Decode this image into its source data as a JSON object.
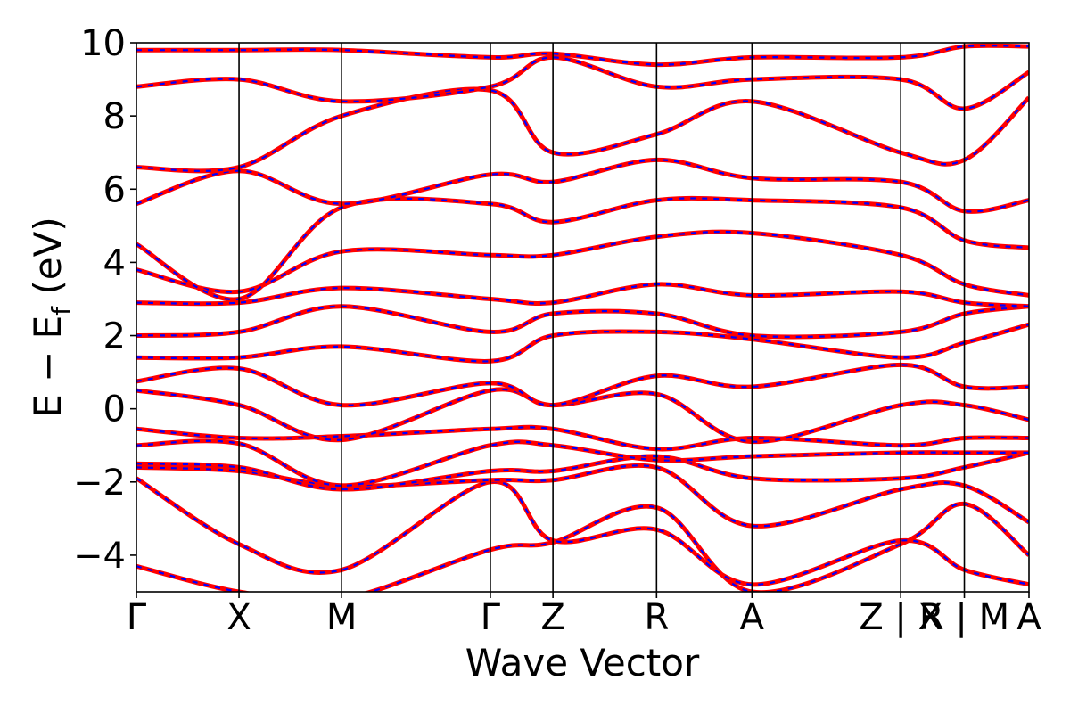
{
  "chart_data": {
    "type": "line",
    "xlabel": "Wave Vector",
    "ylabel": "E − E",
    "ylabel_sub": "f",
    "ylabel_unit": " (eV)",
    "ylim": [
      -5,
      10
    ],
    "yticks": [
      -4,
      -2,
      0,
      2,
      4,
      6,
      8,
      10
    ],
    "ytick_labels": [
      "−4",
      "−2",
      "0",
      "2",
      "4",
      "6",
      "8",
      "10"
    ],
    "kpath_breaks": [
      0,
      1,
      2,
      3.45,
      4.06,
      5.07,
      6.0,
      7.45,
      8.07,
      8.7
    ],
    "kpath_labels": [
      "Γ",
      "X",
      "M",
      "Γ",
      "Z",
      "R",
      "A",
      "Z | X",
      "R | M",
      "A"
    ],
    "grid": false,
    "legend": "none",
    "series": [
      {
        "line_color": "#ff0000",
        "dash_color": "#0000ff",
        "x": [
          0,
          1,
          2,
          3.45,
          4.06,
          5.07,
          6.0,
          7.45,
          8.07,
          8.7
        ],
        "values": [
          -4.3,
          -5.0,
          -5.2,
          -3.85,
          -3.65,
          -2.7,
          -5.0,
          -3.7,
          -2.6,
          -4.0
        ]
      },
      {
        "line_color": "#ff0000",
        "dash_color": "#0000ff",
        "x": [
          0,
          1,
          2,
          3.45,
          4.06,
          5.07,
          6.0,
          7.45,
          8.07,
          8.7
        ],
        "values": [
          -1.9,
          -3.7,
          -4.4,
          -2.0,
          -3.6,
          -3.3,
          -4.8,
          -3.6,
          -4.4,
          -4.8
        ]
      },
      {
        "line_color": "#ff0000",
        "dash_color": "#0000ff",
        "x": [
          0,
          1,
          2,
          3.45,
          4.06,
          5.07,
          6.0,
          7.45,
          8.07,
          8.7
        ],
        "values": [
          -1.6,
          -1.7,
          -2.1,
          -1.95,
          -1.95,
          -1.6,
          -3.2,
          -2.2,
          -2.1,
          -3.1
        ]
      },
      {
        "line_color": "#ff0000",
        "dash_color": "#0000ff",
        "x": [
          0,
          1,
          2,
          3.45,
          4.06,
          5.07,
          6.0,
          7.45,
          8.07,
          8.7
        ],
        "values": [
          -1.5,
          -1.6,
          -2.2,
          -1.7,
          -1.7,
          -1.3,
          -1.9,
          -1.9,
          -1.6,
          -1.2
        ]
      },
      {
        "line_color": "#ff0000",
        "dash_color": "#0000ff",
        "x": [
          0,
          1,
          2,
          3.45,
          4.06,
          5.07,
          6.0,
          7.45,
          8.07,
          8.7
        ],
        "values": [
          -1.0,
          -0.95,
          -2.1,
          -1.0,
          -1.0,
          -1.4,
          -1.3,
          -1.2,
          -1.2,
          -1.2
        ]
      },
      {
        "line_color": "#ff0000",
        "dash_color": "#0000ff",
        "x": [
          0,
          1,
          2,
          3.45,
          4.06,
          5.07,
          6.0,
          7.45,
          8.07,
          8.7
        ],
        "values": [
          -0.55,
          -0.8,
          -0.75,
          -0.55,
          -0.55,
          -1.1,
          -0.8,
          -1.0,
          -0.8,
          -0.8
        ]
      },
      {
        "line_color": "#ff0000",
        "dash_color": "#0000ff",
        "x": [
          0,
          1,
          2,
          3.45,
          4.06,
          5.07,
          6.0,
          7.45,
          8.07,
          8.7
        ],
        "values": [
          0.5,
          0.1,
          -0.85,
          0.5,
          0.1,
          0.4,
          -0.9,
          0.1,
          0.1,
          -0.3
        ]
      },
      {
        "line_color": "#ff0000",
        "dash_color": "#0000ff",
        "x": [
          0,
          1,
          2,
          3.45,
          4.06,
          5.07,
          6.0,
          7.45,
          8.07,
          8.7
        ],
        "values": [
          0.75,
          1.1,
          0.1,
          0.7,
          0.1,
          0.9,
          0.6,
          1.2,
          0.6,
          0.6
        ]
      },
      {
        "line_color": "#ff0000",
        "dash_color": "#0000ff",
        "x": [
          0,
          1,
          2,
          3.45,
          4.06,
          5.07,
          6.0,
          7.45,
          8.07,
          8.7
        ],
        "values": [
          1.4,
          1.4,
          1.7,
          1.3,
          2.0,
          2.1,
          1.9,
          1.4,
          1.8,
          2.3
        ]
      },
      {
        "line_color": "#ff0000",
        "dash_color": "#0000ff",
        "x": [
          0,
          1,
          2,
          3.45,
          4.06,
          5.07,
          6.0,
          7.45,
          8.07,
          8.7
        ],
        "values": [
          2.0,
          2.1,
          2.8,
          2.1,
          2.6,
          2.6,
          2.0,
          2.1,
          2.6,
          2.8
        ]
      },
      {
        "line_color": "#ff0000",
        "dash_color": "#0000ff",
        "x": [
          0,
          1,
          2,
          3.45,
          4.06,
          5.07,
          6.0,
          7.45,
          8.07,
          8.7
        ],
        "values": [
          2.9,
          2.9,
          3.3,
          3.0,
          2.9,
          3.4,
          3.1,
          3.2,
          2.9,
          2.8
        ]
      },
      {
        "line_color": "#ff0000",
        "dash_color": "#0000ff",
        "x": [
          0,
          1,
          2,
          3.45,
          4.06,
          5.07,
          6.0,
          7.45,
          8.07,
          8.7
        ],
        "values": [
          3.8,
          3.2,
          4.3,
          4.2,
          4.2,
          4.7,
          4.8,
          4.2,
          3.4,
          3.1
        ]
      },
      {
        "line_color": "#ff0000",
        "dash_color": "#0000ff",
        "x": [
          0,
          1,
          2,
          3.45,
          4.06,
          5.07,
          6.0,
          7.45,
          8.07,
          8.7
        ],
        "values": [
          4.5,
          3.0,
          5.5,
          5.6,
          5.1,
          5.7,
          5.7,
          5.5,
          4.6,
          4.4
        ]
      },
      {
        "line_color": "#ff0000",
        "dash_color": "#0000ff",
        "x": [
          0,
          1,
          2,
          3.45,
          4.06,
          5.07,
          6.0,
          7.45,
          8.07,
          8.7
        ],
        "values": [
          5.6,
          6.5,
          5.6,
          6.4,
          6.2,
          6.8,
          6.3,
          6.2,
          5.4,
          5.7
        ]
      },
      {
        "line_color": "#ff0000",
        "dash_color": "#0000ff",
        "x": [
          0,
          1,
          2,
          3.45,
          4.06,
          5.07,
          6.0,
          7.45,
          8.07,
          8.7
        ],
        "values": [
          6.6,
          6.6,
          8.0,
          8.7,
          7.0,
          7.5,
          8.4,
          7.0,
          6.8,
          8.5
        ]
      },
      {
        "line_color": "#ff0000",
        "dash_color": "#0000ff",
        "x": [
          0,
          1,
          2,
          3.45,
          4.06,
          5.07,
          6.0,
          7.45,
          8.07,
          8.7
        ],
        "values": [
          8.8,
          9.0,
          8.4,
          8.8,
          9.6,
          8.8,
          9.0,
          9.0,
          8.2,
          9.2
        ]
      },
      {
        "line_color": "#ff0000",
        "dash_color": "#0000ff",
        "x": [
          0,
          1,
          2,
          3.45,
          4.06,
          5.07,
          6.0,
          7.45,
          8.07,
          8.7
        ],
        "values": [
          9.8,
          9.8,
          9.8,
          9.6,
          9.7,
          9.4,
          9.6,
          9.6,
          9.9,
          9.9
        ]
      }
    ]
  }
}
